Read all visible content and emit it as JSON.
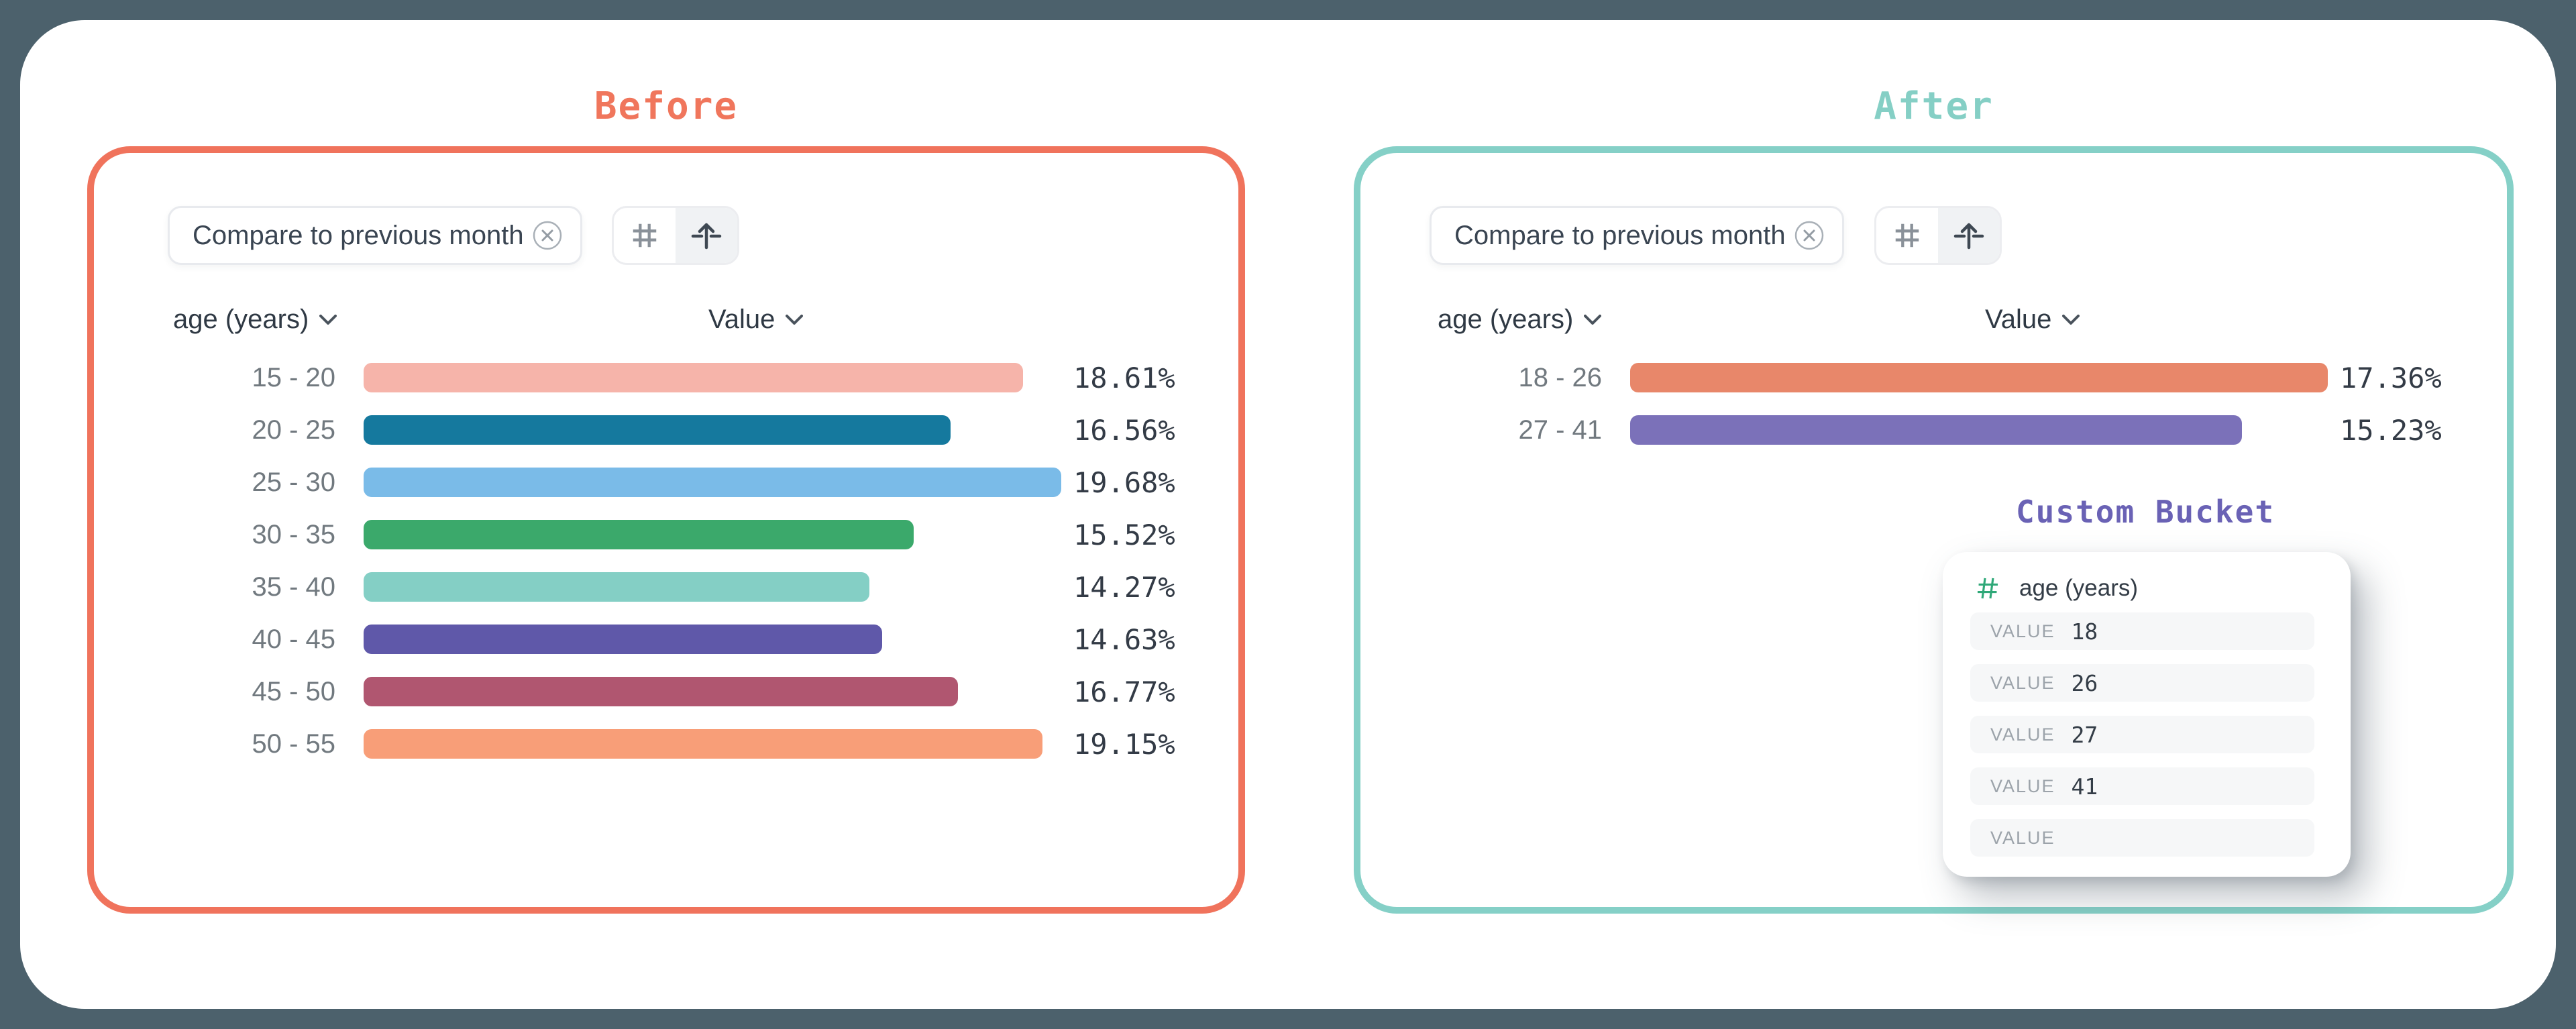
{
  "page": {
    "background": "#4C616C",
    "card_color": "#FFFFFF"
  },
  "before_panel": {
    "title": "Before",
    "accent": "#F0735C",
    "filter_chip": {
      "label": "Compare to previous month",
      "close_icon": "circle-x"
    },
    "view_toggle": {
      "options": [
        {
          "icon": "hash",
          "selected": false
        },
        {
          "icon": "flip-axis",
          "selected": true
        }
      ]
    },
    "dimension_header": "age (years)",
    "value_header": "Value"
  },
  "after_panel": {
    "title": "After",
    "accent": "#85D0C7",
    "filter_chip": {
      "label": "Compare to previous month",
      "close_icon": "circle-x"
    },
    "view_toggle": {
      "options": [
        {
          "icon": "hash",
          "selected": false
        },
        {
          "icon": "flip-axis",
          "selected": true
        }
      ]
    },
    "dimension_header": "age (years)",
    "value_header": "Value"
  },
  "custom_bucket": {
    "title": "Custom Bucket",
    "field": {
      "icon": "hash-icon",
      "icon_color": "#2FA878",
      "label": "age (years)"
    },
    "rows": [
      {
        "label": "VALUE",
        "value": "18"
      },
      {
        "label": "VALUE",
        "value": "26"
      },
      {
        "label": "VALUE",
        "value": "27"
      },
      {
        "label": "VALUE",
        "value": "41"
      },
      {
        "label": "VALUE",
        "value": ""
      }
    ]
  },
  "chart_data": [
    {
      "type": "bar",
      "orientation": "horizontal",
      "title": "Before",
      "dimension": "age (years)",
      "value_axis": "Value",
      "categories": [
        "15 - 20",
        "20 - 25",
        "25 - 30",
        "30 - 35",
        "35 - 40",
        "40 - 45",
        "45 - 50",
        "50 - 55"
      ],
      "values": [
        18.61,
        16.56,
        19.68,
        15.52,
        14.27,
        14.63,
        16.77,
        19.15
      ],
      "value_labels": [
        "18.61%",
        "16.56%",
        "19.68%",
        "15.52%",
        "14.27%",
        "14.63%",
        "16.77%",
        "19.15%"
      ],
      "colors": [
        "#F6B4AA",
        "#15799E",
        "#7ABBE8",
        "#3BA96B",
        "#84CFC5",
        "#5F58A9",
        "#B05670",
        "#F89E78"
      ],
      "xlim": [
        0,
        19.68
      ],
      "grid": false,
      "legend": false
    },
    {
      "type": "bar",
      "orientation": "horizontal",
      "title": "After",
      "dimension": "age (years)",
      "value_axis": "Value",
      "categories": [
        "18 - 26",
        "27 - 41"
      ],
      "values": [
        17.36,
        15.23
      ],
      "value_labels": [
        "17.36%",
        "15.23%"
      ],
      "colors": [
        "#E8876A",
        "#7B71B9"
      ],
      "xlim": [
        0,
        17.36
      ],
      "grid": false,
      "legend": false
    }
  ]
}
